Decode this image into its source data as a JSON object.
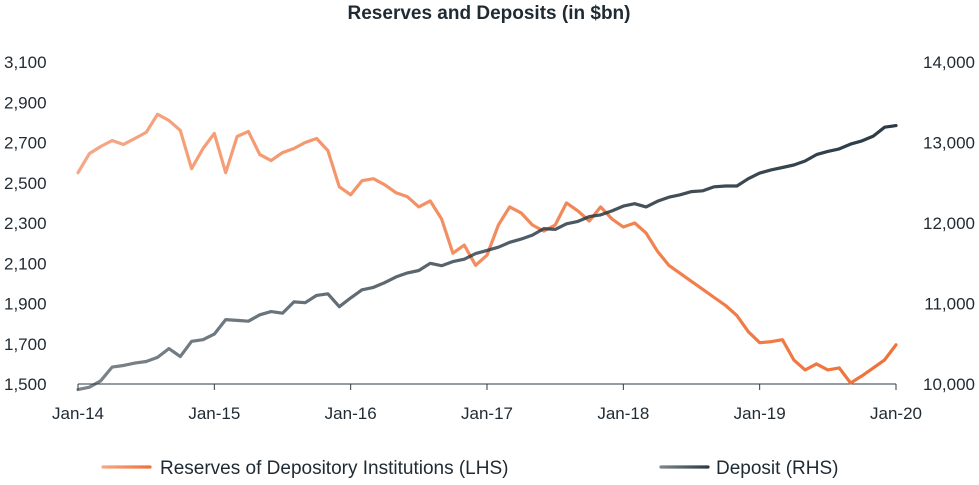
{
  "chart_data": {
    "type": "line",
    "title": "Reserves and Deposits (in $bn)",
    "xlabel": "",
    "ylabel_left": "",
    "ylabel_right": "",
    "x_ticks": [
      "Jan-14",
      "Jan-15",
      "Jan-16",
      "Jan-17",
      "Jan-18",
      "Jan-19",
      "Jan-20"
    ],
    "ylim_left": [
      1500,
      3100
    ],
    "yticks_left": [
      "1,500",
      "1,700",
      "1,900",
      "2,100",
      "2,300",
      "2,500",
      "2,700",
      "2,900",
      "3,100"
    ],
    "ylim_right": [
      10000,
      14000
    ],
    "yticks_right": [
      "10,000",
      "11,000",
      "12,000",
      "13,000",
      "14,000"
    ],
    "legend_position": "bottom",
    "grid": false,
    "x": [
      "2014-01",
      "2014-02",
      "2014-03",
      "2014-04",
      "2014-05",
      "2014-06",
      "2014-07",
      "2014-08",
      "2014-09",
      "2014-10",
      "2014-11",
      "2014-12",
      "2015-01",
      "2015-02",
      "2015-03",
      "2015-04",
      "2015-05",
      "2015-06",
      "2015-07",
      "2015-08",
      "2015-09",
      "2015-10",
      "2015-11",
      "2015-12",
      "2016-01",
      "2016-02",
      "2016-03",
      "2016-04",
      "2016-05",
      "2016-06",
      "2016-07",
      "2016-08",
      "2016-09",
      "2016-10",
      "2016-11",
      "2016-12",
      "2017-01",
      "2017-02",
      "2017-03",
      "2017-04",
      "2017-05",
      "2017-06",
      "2017-07",
      "2017-08",
      "2017-09",
      "2017-10",
      "2017-11",
      "2017-12",
      "2018-01",
      "2018-02",
      "2018-03",
      "2018-04",
      "2018-05",
      "2018-06",
      "2018-07",
      "2018-08",
      "2018-09",
      "2018-10",
      "2018-11",
      "2018-12",
      "2019-01",
      "2019-02",
      "2019-03",
      "2019-04",
      "2019-05",
      "2019-06",
      "2019-07",
      "2019-08",
      "2019-09",
      "2019-10",
      "2019-11",
      "2019-12",
      "2020-01"
    ],
    "series": [
      {
        "name": "Reserves of Depository Institutions (LHS)",
        "axis": "left",
        "color": "#f07139",
        "values": [
          2550,
          2645,
          2680,
          2710,
          2690,
          2720,
          2750,
          2840,
          2810,
          2760,
          2570,
          2670,
          2745,
          2550,
          2730,
          2755,
          2640,
          2610,
          2650,
          2670,
          2700,
          2720,
          2660,
          2480,
          2440,
          2510,
          2520,
          2490,
          2450,
          2430,
          2380,
          2410,
          2320,
          2150,
          2190,
          2090,
          2140,
          2290,
          2380,
          2350,
          2290,
          2260,
          2290,
          2400,
          2360,
          2310,
          2380,
          2320,
          2280,
          2300,
          2250,
          2160,
          2090,
          2050,
          2010,
          1970,
          1930,
          1890,
          1840,
          1760,
          1705,
          1710,
          1720,
          1620,
          1570,
          1600,
          1570,
          1580,
          1505,
          1540,
          1580,
          1620,
          1695
        ]
      },
      {
        "name": "Deposit (RHS)",
        "axis": "right",
        "color": "#2b3a45",
        "values": [
          9930,
          9960,
          10040,
          10210,
          10230,
          10260,
          10280,
          10330,
          10440,
          10340,
          10530,
          10550,
          10620,
          10800,
          10790,
          10780,
          10860,
          10900,
          10880,
          11020,
          11010,
          11100,
          11120,
          10960,
          11070,
          11170,
          11200,
          11260,
          11330,
          11380,
          11410,
          11500,
          11470,
          11520,
          11550,
          11620,
          11660,
          11700,
          11760,
          11800,
          11850,
          11930,
          11920,
          11990,
          12020,
          12080,
          12100,
          12150,
          12210,
          12240,
          12200,
          12270,
          12320,
          12350,
          12390,
          12400,
          12450,
          12460,
          12460,
          12550,
          12620,
          12660,
          12690,
          12720,
          12770,
          12850,
          12890,
          12920,
          12980,
          13020,
          13080,
          13190,
          13210
        ]
      }
    ]
  }
}
